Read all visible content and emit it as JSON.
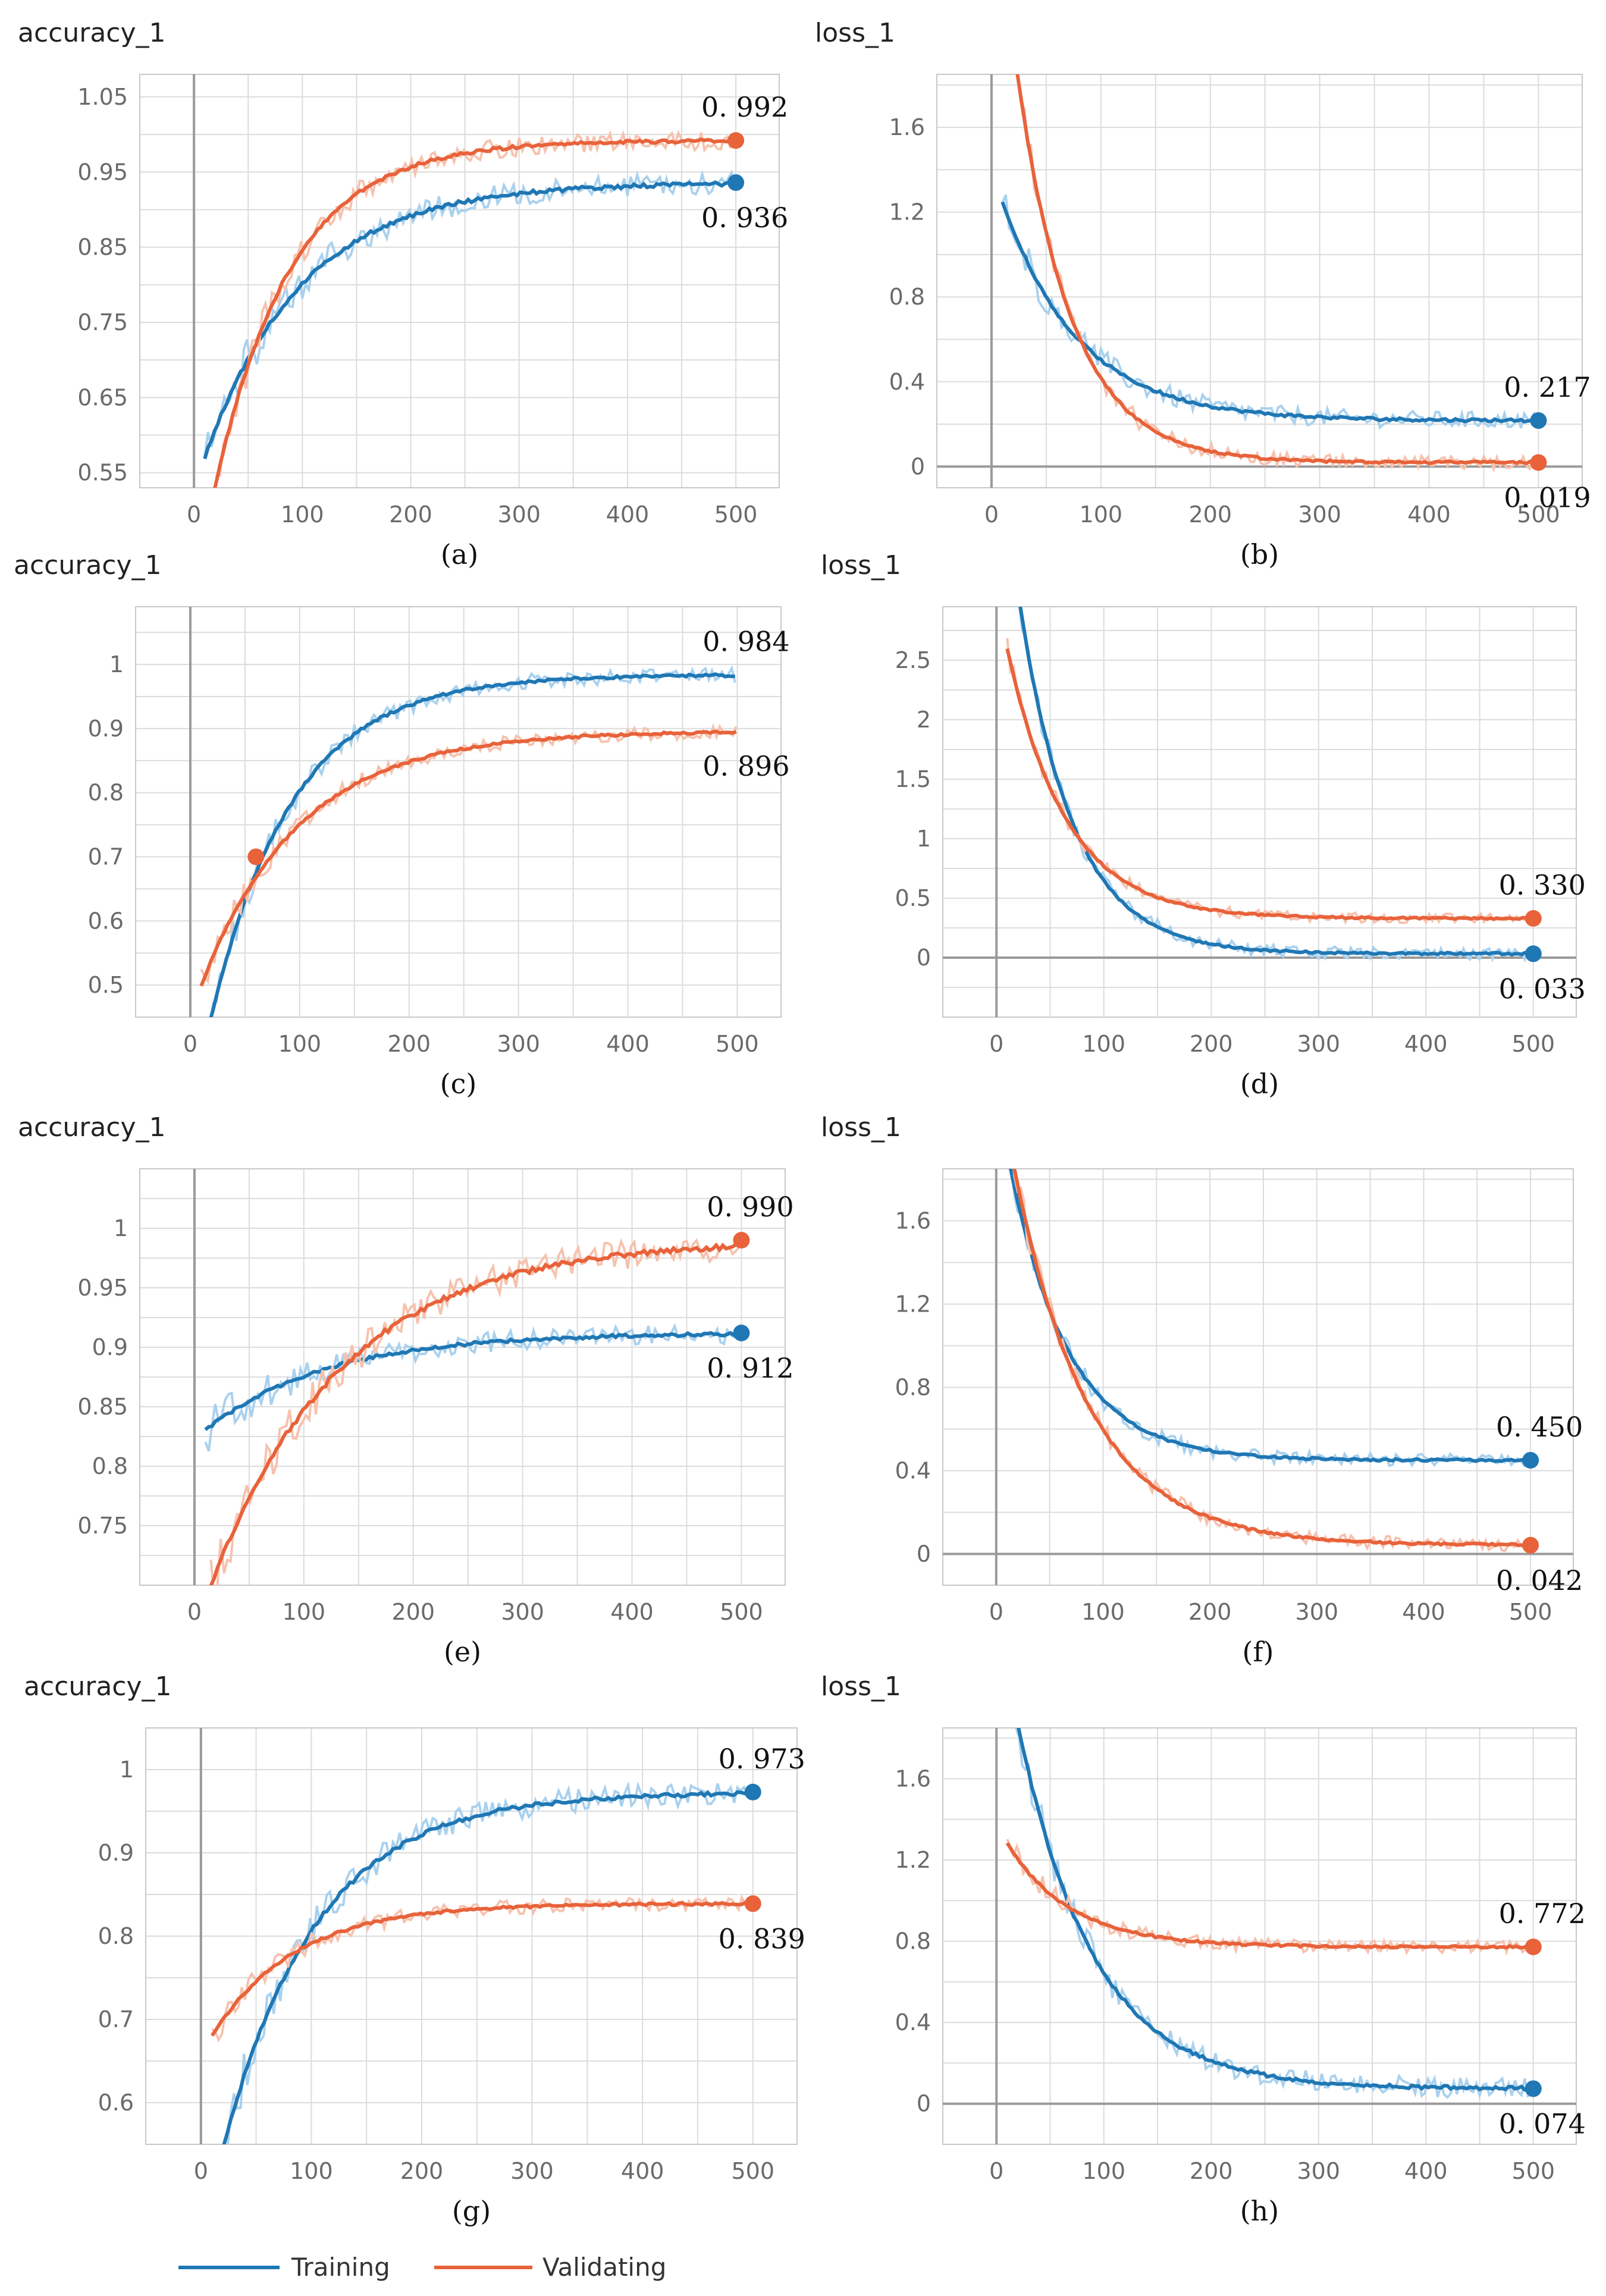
{
  "colors": {
    "training": "#1f77b4",
    "validating": "#e8623a",
    "training_raw": "#a9d1ee",
    "validating_raw": "#f6c2ae",
    "grid": "#dcdcdc",
    "axis": "#9a9a9a"
  },
  "legend": {
    "training": "Training",
    "validating": "Validating"
  },
  "chart_data": [
    {
      "id": "a",
      "type": "line",
      "title": "accuracy_1",
      "caption": "(a)",
      "xlim": [
        -50,
        540
      ],
      "ylim": [
        0.53,
        1.08
      ],
      "xticks": [
        0,
        100,
        200,
        300,
        400,
        500
      ],
      "yticks": [
        0.55,
        0.65,
        0.75,
        0.85,
        0.95,
        1.05
      ],
      "ytick_labels": [
        "0.55",
        "0.65",
        "0.75",
        "0.85",
        "0.95",
        "1.05"
      ],
      "series": [
        {
          "name": "Training",
          "start": 10,
          "startVal": 0.57,
          "end": 500,
          "endVal": 0.936,
          "tau": 90,
          "noise": 0.015,
          "marker": true,
          "label": "0. 936",
          "label_pos": "below"
        },
        {
          "name": "Validating",
          "start": 15,
          "startVal": 0.5,
          "end": 500,
          "endVal": 0.992,
          "tau": 70,
          "noise": 0.012,
          "marker": true,
          "label": "0. 992",
          "label_pos": "above"
        }
      ]
    },
    {
      "id": "b",
      "type": "line",
      "title": "loss_1",
      "caption": "(b)",
      "xlim": [
        -50,
        540
      ],
      "ylim": [
        -0.1,
        1.85
      ],
      "xticks": [
        0,
        100,
        200,
        300,
        400,
        500
      ],
      "yticks": [
        0,
        0.4,
        0.8,
        1.2,
        1.6
      ],
      "ytick_labels": [
        "0",
        "0.4",
        "0.8",
        "1.2",
        "1.6"
      ],
      "series": [
        {
          "name": "Training",
          "start": 10,
          "startVal": 1.25,
          "end": 500,
          "endVal": 0.217,
          "tau": 70,
          "noise": 0.04,
          "marker": true,
          "label": "0. 217",
          "label_pos": "above"
        },
        {
          "name": "Validating",
          "start": 15,
          "startVal": 2.2,
          "end": 500,
          "endVal": 0.019,
          "tau": 50,
          "noise": 0.03,
          "marker": true,
          "label": "0. 019",
          "label_pos": "below"
        }
      ]
    },
    {
      "id": "c",
      "type": "line",
      "title": "accuracy_1",
      "caption": "(c)",
      "xlim": [
        -50,
        540
      ],
      "ylim": [
        0.45,
        1.09
      ],
      "xticks": [
        0,
        100,
        200,
        300,
        400,
        500
      ],
      "yticks": [
        0.5,
        0.6,
        0.7,
        0.8,
        0.9,
        1
      ],
      "ytick_labels": [
        "0.5",
        "0.6",
        "0.7",
        "0.8",
        "0.9",
        "1"
      ],
      "series": [
        {
          "name": "Training",
          "start": 15,
          "startVal": 0.42,
          "end": 500,
          "endVal": 0.984,
          "tau": 75,
          "noise": 0.012,
          "marker": false,
          "label": "0. 984",
          "label_pos": "above"
        },
        {
          "name": "Validating",
          "start": 10,
          "startVal": 0.5,
          "end": 500,
          "endVal": 0.896,
          "tau": 90,
          "noise": 0.01,
          "marker": false,
          "label": "0. 896",
          "label_pos": "below"
        }
      ],
      "intersection": {
        "x": 60,
        "y": 0.7
      }
    },
    {
      "id": "d",
      "type": "line",
      "title": "loss_1",
      "caption": "(d)",
      "xlim": [
        -50,
        540
      ],
      "ylim": [
        -0.5,
        2.95
      ],
      "xticks": [
        0,
        100,
        200,
        300,
        400,
        500
      ],
      "yticks": [
        0,
        0.5,
        1,
        1.5,
        2,
        2.5
      ],
      "ytick_labels": [
        "0",
        "0.5",
        "1",
        "1.5",
        "2",
        "2.5"
      ],
      "series": [
        {
          "name": "Training",
          "start": 18,
          "startVal": 3.2,
          "end": 500,
          "endVal": 0.033,
          "tau": 50,
          "noise": 0.05,
          "marker": true,
          "label": "0. 033",
          "label_pos": "below"
        },
        {
          "name": "Validating",
          "start": 10,
          "startVal": 2.6,
          "end": 500,
          "endVal": 0.33,
          "tau": 55,
          "noise": 0.04,
          "marker": true,
          "label": "0. 330",
          "label_pos": "above"
        }
      ]
    },
    {
      "id": "e",
      "type": "line",
      "title": "accuracy_1",
      "caption": "(e)",
      "xlim": [
        -50,
        540
      ],
      "ylim": [
        0.7,
        1.05
      ],
      "xticks": [
        0,
        100,
        200,
        300,
        400,
        500
      ],
      "yticks": [
        0.75,
        0.8,
        0.85,
        0.9,
        0.95,
        1
      ],
      "ytick_labels": [
        "0.75",
        "0.8",
        "0.85",
        "0.9",
        "0.95",
        "1"
      ],
      "series": [
        {
          "name": "Training",
          "start": 10,
          "startVal": 0.83,
          "end": 500,
          "endVal": 0.912,
          "tau": 110,
          "noise": 0.008,
          "marker": true,
          "label": "0. 912",
          "label_pos": "below"
        },
        {
          "name": "Validating",
          "start": 15,
          "startVal": 0.7,
          "end": 500,
          "endVal": 0.99,
          "tau": 120,
          "noise": 0.012,
          "marker": true,
          "label": "0. 990",
          "label_pos": "above"
        }
      ]
    },
    {
      "id": "f",
      "type": "line",
      "title": "loss_1",
      "caption": "(f)",
      "xlim": [
        -50,
        540
      ],
      "ylim": [
        -0.15,
        1.85
      ],
      "xticks": [
        0,
        100,
        200,
        300,
        400,
        500
      ],
      "yticks": [
        0,
        0.4,
        0.8,
        1.2,
        1.6
      ],
      "ytick_labels": [
        "0",
        "0.4",
        "0.8",
        "1.2",
        "1.6"
      ],
      "series": [
        {
          "name": "Training",
          "start": 8,
          "startVal": 2.0,
          "end": 500,
          "endVal": 0.45,
          "tau": 55,
          "noise": 0.03,
          "marker": true,
          "label": "0. 450",
          "label_pos": "above"
        },
        {
          "name": "Validating",
          "start": 8,
          "startVal": 2.1,
          "end": 500,
          "endVal": 0.042,
          "tau": 70,
          "noise": 0.03,
          "marker": true,
          "label": "0. 042",
          "label_pos": "below"
        }
      ]
    },
    {
      "id": "g",
      "type": "line",
      "title": "accuracy_1",
      "caption": "(g)",
      "xlim": [
        -50,
        540
      ],
      "ylim": [
        0.55,
        1.05
      ],
      "xticks": [
        0,
        100,
        200,
        300,
        400,
        500
      ],
      "yticks": [
        0.6,
        0.7,
        0.8,
        0.9,
        1
      ],
      "ytick_labels": [
        "0.6",
        "0.7",
        "0.8",
        "0.9",
        "1"
      ],
      "series": [
        {
          "name": "Training",
          "start": 15,
          "startVal": 0.52,
          "end": 500,
          "endVal": 0.973,
          "tau": 85,
          "noise": 0.014,
          "marker": true,
          "label": "0. 973",
          "label_pos": "above"
        },
        {
          "name": "Validating",
          "start": 10,
          "startVal": 0.68,
          "end": 500,
          "endVal": 0.839,
          "tau": 75,
          "noise": 0.008,
          "marker": true,
          "label": "0. 839",
          "label_pos": "below"
        }
      ]
    },
    {
      "id": "h",
      "type": "line",
      "title": "loss_1",
      "caption": "(h)",
      "xlim": [
        -50,
        540
      ],
      "ylim": [
        -0.2,
        1.85
      ],
      "xticks": [
        0,
        100,
        200,
        300,
        400,
        500
      ],
      "yticks": [
        0,
        0.4,
        0.8,
        1.2,
        1.6
      ],
      "ytick_labels": [
        "0",
        "0.4",
        "0.8",
        "1.2",
        "1.6"
      ],
      "series": [
        {
          "name": "Training",
          "start": 15,
          "startVal": 2.0,
          "end": 500,
          "endVal": 0.074,
          "tau": 70,
          "noise": 0.05,
          "marker": true,
          "label": "0. 074",
          "label_pos": "below"
        },
        {
          "name": "Validating",
          "start": 10,
          "startVal": 1.28,
          "end": 500,
          "endVal": 0.772,
          "tau": 60,
          "noise": 0.03,
          "marker": true,
          "label": "0. 772",
          "label_pos": "above"
        }
      ]
    }
  ]
}
